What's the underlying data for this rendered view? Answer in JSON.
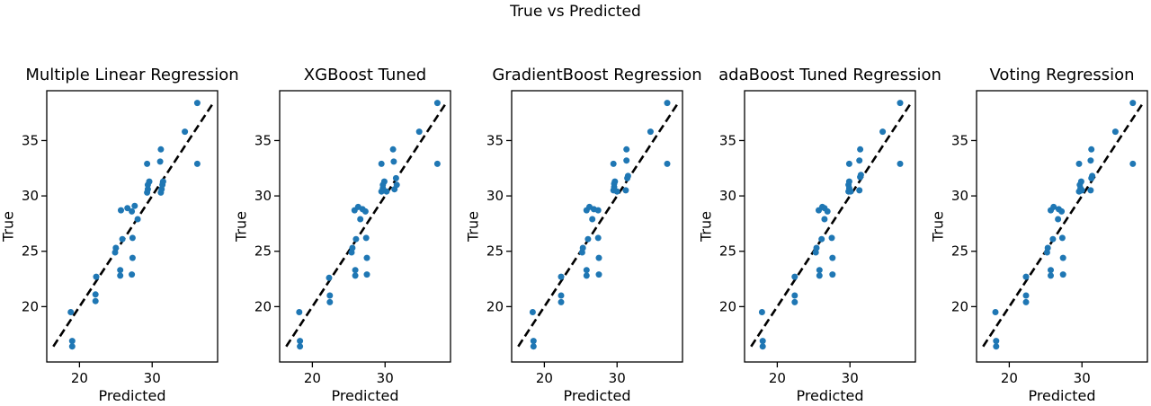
{
  "figure": {
    "title": "True vs Predicted",
    "background_color": "#ffffff",
    "text_color": "#000000",
    "point_color": "#1f77b4",
    "line_color": "#000000"
  },
  "chart_data": [
    {
      "type": "scatter",
      "title": "Multiple Linear Regression",
      "xlabel": "Predicted",
      "ylabel": "True",
      "xlim": [
        15.5,
        39.0
      ],
      "ylim": [
        15.0,
        39.5
      ],
      "xticks": [
        20,
        30
      ],
      "yticks": [
        20,
        25,
        30,
        35
      ],
      "grid": false,
      "identity_line": {
        "style": "dashed",
        "points": [
          [
            16.4,
            16.4
          ],
          [
            38.4,
            38.4
          ]
        ]
      },
      "points": [
        [
          19.0,
          16.4
        ],
        [
          19.0,
          16.9
        ],
        [
          18.8,
          19.5
        ],
        [
          22.2,
          20.5
        ],
        [
          22.2,
          21.1
        ],
        [
          22.3,
          22.7
        ],
        [
          25.6,
          22.8
        ],
        [
          25.6,
          23.3
        ],
        [
          27.2,
          22.9
        ],
        [
          27.3,
          24.4
        ],
        [
          24.9,
          24.9
        ],
        [
          25.0,
          25.3
        ],
        [
          25.9,
          26.1
        ],
        [
          27.3,
          26.2
        ],
        [
          28.0,
          27.9
        ],
        [
          25.7,
          28.7
        ],
        [
          26.6,
          28.9
        ],
        [
          27.2,
          28.6
        ],
        [
          27.6,
          29.1
        ],
        [
          29.3,
          30.3
        ],
        [
          29.4,
          30.6
        ],
        [
          29.4,
          31.0
        ],
        [
          29.6,
          31.3
        ],
        [
          31.2,
          30.3
        ],
        [
          31.3,
          30.6
        ],
        [
          31.4,
          31.0
        ],
        [
          31.5,
          31.3
        ],
        [
          29.3,
          32.9
        ],
        [
          31.1,
          33.1
        ],
        [
          31.2,
          34.2
        ],
        [
          34.5,
          35.8
        ],
        [
          36.2,
          38.4
        ],
        [
          36.2,
          32.9
        ]
      ]
    },
    {
      "type": "scatter",
      "title": "XGBoost Tuned",
      "xlabel": "Predicted",
      "ylabel": "True",
      "xlim": [
        15.5,
        39.0
      ],
      "ylim": [
        15.0,
        39.5
      ],
      "xticks": [
        20,
        30
      ],
      "yticks": [
        20,
        25,
        30,
        35
      ],
      "grid": false,
      "identity_line": {
        "style": "dashed",
        "points": [
          [
            16.4,
            16.4
          ],
          [
            38.4,
            38.4
          ]
        ]
      },
      "points": [
        [
          18.3,
          16.4
        ],
        [
          18.3,
          16.9
        ],
        [
          18.2,
          19.5
        ],
        [
          22.4,
          20.4
        ],
        [
          22.4,
          21.0
        ],
        [
          22.3,
          22.6
        ],
        [
          25.9,
          22.8
        ],
        [
          25.9,
          23.3
        ],
        [
          27.5,
          22.9
        ],
        [
          27.5,
          24.4
        ],
        [
          25.4,
          24.9
        ],
        [
          25.5,
          25.3
        ],
        [
          26.0,
          26.1
        ],
        [
          27.4,
          26.2
        ],
        [
          26.6,
          27.9
        ],
        [
          25.8,
          28.7
        ],
        [
          26.3,
          29.0
        ],
        [
          26.9,
          28.8
        ],
        [
          27.3,
          28.6
        ],
        [
          29.5,
          30.4
        ],
        [
          29.7,
          30.7
        ],
        [
          29.7,
          31.0
        ],
        [
          29.9,
          31.3
        ],
        [
          30.2,
          30.4
        ],
        [
          31.3,
          30.6
        ],
        [
          31.5,
          31.6
        ],
        [
          31.6,
          31.0
        ],
        [
          29.5,
          32.9
        ],
        [
          31.2,
          33.1
        ],
        [
          31.1,
          34.2
        ],
        [
          34.7,
          35.8
        ],
        [
          37.2,
          38.4
        ],
        [
          37.2,
          32.9
        ]
      ]
    },
    {
      "type": "scatter",
      "title": "GradientBoost Regression",
      "xlabel": "Predicted",
      "ylabel": "True",
      "xlim": [
        15.5,
        39.0
      ],
      "ylim": [
        15.0,
        39.5
      ],
      "xticks": [
        20,
        30
      ],
      "yticks": [
        20,
        25,
        30,
        35
      ],
      "grid": false,
      "identity_line": {
        "style": "dashed",
        "points": [
          [
            16.4,
            16.4
          ],
          [
            38.4,
            38.4
          ]
        ]
      },
      "points": [
        [
          18.5,
          16.4
        ],
        [
          18.5,
          16.9
        ],
        [
          18.4,
          19.5
        ],
        [
          22.3,
          20.4
        ],
        [
          22.3,
          21.0
        ],
        [
          22.3,
          22.7
        ],
        [
          25.8,
          22.8
        ],
        [
          25.8,
          23.3
        ],
        [
          27.5,
          22.9
        ],
        [
          27.5,
          24.4
        ],
        [
          25.2,
          24.9
        ],
        [
          25.3,
          25.3
        ],
        [
          26.0,
          26.1
        ],
        [
          27.4,
          26.2
        ],
        [
          26.6,
          27.9
        ],
        [
          25.8,
          28.7
        ],
        [
          26.2,
          29.0
        ],
        [
          26.8,
          28.8
        ],
        [
          27.4,
          28.7
        ],
        [
          29.5,
          30.5
        ],
        [
          29.6,
          30.8
        ],
        [
          29.6,
          31.1
        ],
        [
          29.7,
          31.3
        ],
        [
          30.0,
          30.4
        ],
        [
          31.2,
          30.5
        ],
        [
          31.4,
          31.6
        ],
        [
          31.5,
          31.8
        ],
        [
          29.5,
          32.9
        ],
        [
          31.3,
          33.2
        ],
        [
          31.3,
          34.2
        ],
        [
          34.6,
          35.8
        ],
        [
          36.9,
          38.4
        ],
        [
          36.9,
          32.9
        ]
      ]
    },
    {
      "type": "scatter",
      "title": "adaBoost Tuned Regression",
      "xlabel": "Predicted",
      "ylabel": "True",
      "xlim": [
        15.5,
        39.0
      ],
      "ylim": [
        15.0,
        39.5
      ],
      "xticks": [
        20,
        30
      ],
      "yticks": [
        20,
        25,
        30,
        35
      ],
      "grid": false,
      "identity_line": {
        "style": "dashed",
        "points": [
          [
            16.4,
            16.4
          ],
          [
            38.4,
            38.4
          ]
        ]
      },
      "points": [
        [
          18.0,
          16.4
        ],
        [
          18.0,
          16.9
        ],
        [
          17.9,
          19.5
        ],
        [
          22.4,
          20.4
        ],
        [
          22.4,
          21.0
        ],
        [
          22.4,
          22.7
        ],
        [
          25.8,
          22.8
        ],
        [
          25.8,
          23.3
        ],
        [
          27.6,
          22.9
        ],
        [
          27.6,
          24.4
        ],
        [
          25.3,
          24.9
        ],
        [
          25.4,
          25.3
        ],
        [
          26.1,
          26.1
        ],
        [
          27.5,
          26.2
        ],
        [
          26.5,
          27.9
        ],
        [
          25.7,
          28.7
        ],
        [
          26.2,
          29.0
        ],
        [
          26.5,
          28.9
        ],
        [
          26.9,
          28.6
        ],
        [
          29.8,
          30.4
        ],
        [
          29.9,
          30.7
        ],
        [
          29.8,
          31.0
        ],
        [
          29.9,
          31.3
        ],
        [
          30.1,
          30.4
        ],
        [
          31.3,
          30.5
        ],
        [
          31.4,
          31.7
        ],
        [
          31.5,
          31.9
        ],
        [
          29.9,
          32.9
        ],
        [
          31.3,
          33.2
        ],
        [
          31.4,
          34.2
        ],
        [
          34.5,
          35.8
        ],
        [
          36.9,
          38.4
        ],
        [
          36.9,
          32.9
        ]
      ]
    },
    {
      "type": "scatter",
      "title": "Voting Regression",
      "xlabel": "Predicted",
      "ylabel": "True",
      "xlim": [
        15.5,
        39.0
      ],
      "ylim": [
        15.0,
        39.5
      ],
      "xticks": [
        20,
        30
      ],
      "yticks": [
        20,
        25,
        30,
        35
      ],
      "grid": false,
      "identity_line": {
        "style": "dashed",
        "points": [
          [
            16.4,
            16.4
          ],
          [
            38.4,
            38.4
          ]
        ]
      },
      "points": [
        [
          18.2,
          16.4
        ],
        [
          18.2,
          16.9
        ],
        [
          18.1,
          19.5
        ],
        [
          22.3,
          20.4
        ],
        [
          22.3,
          21.0
        ],
        [
          22.3,
          22.7
        ],
        [
          25.7,
          22.8
        ],
        [
          25.7,
          23.3
        ],
        [
          27.4,
          22.9
        ],
        [
          27.4,
          24.4
        ],
        [
          25.2,
          24.9
        ],
        [
          25.3,
          25.3
        ],
        [
          26.0,
          26.1
        ],
        [
          27.3,
          26.2
        ],
        [
          26.7,
          27.9
        ],
        [
          25.7,
          28.7
        ],
        [
          26.1,
          29.0
        ],
        [
          26.8,
          28.8
        ],
        [
          27.2,
          28.6
        ],
        [
          29.6,
          30.4
        ],
        [
          29.8,
          30.7
        ],
        [
          29.7,
          31.0
        ],
        [
          29.9,
          31.3
        ],
        [
          30.0,
          30.5
        ],
        [
          31.2,
          30.5
        ],
        [
          31.3,
          31.6
        ],
        [
          31.4,
          31.8
        ],
        [
          29.6,
          32.9
        ],
        [
          31.2,
          33.2
        ],
        [
          31.3,
          34.2
        ],
        [
          34.6,
          35.8
        ],
        [
          37.0,
          38.4
        ],
        [
          37.0,
          32.9
        ]
      ]
    }
  ]
}
